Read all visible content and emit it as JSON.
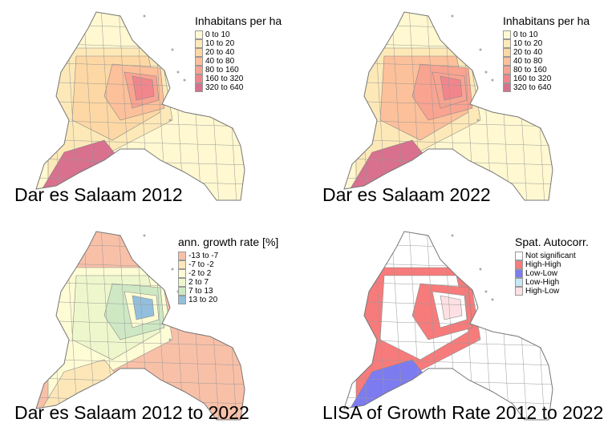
{
  "panels": [
    {
      "title": "Dar es Salaam 2012",
      "legend_title": "Inhabitans per ha",
      "legend": [
        {
          "label": "0 to 10",
          "color": "#fff8d0"
        },
        {
          "label": "10 to 20",
          "color": "#fde9b8"
        },
        {
          "label": "20 to 40",
          "color": "#fdd8a4"
        },
        {
          "label": "40 to 80",
          "color": "#fcc09a"
        },
        {
          "label": "80 to 160",
          "color": "#f9a391"
        },
        {
          "label": "160 to 320",
          "color": "#f0868c"
        },
        {
          "label": "320 to 640",
          "color": "#d8708e"
        }
      ],
      "fills": [
        1,
        2,
        3,
        4,
        5,
        6
      ]
    },
    {
      "title": "Dar es Salaam 2022",
      "legend_title": "Inhabitans per ha",
      "legend": [
        {
          "label": "0 to 10",
          "color": "#fff8d0"
        },
        {
          "label": "10 to 20",
          "color": "#fde9b8"
        },
        {
          "label": "20 to 40",
          "color": "#fdd8a4"
        },
        {
          "label": "40 to 80",
          "color": "#fcc09a"
        },
        {
          "label": "80 to 160",
          "color": "#f9a391"
        },
        {
          "label": "160 to 320",
          "color": "#f0868c"
        },
        {
          "label": "320 to 640",
          "color": "#d8708e"
        }
      ],
      "fills": [
        1,
        3,
        4,
        4,
        5,
        6
      ]
    },
    {
      "title": "Dar es Salaam 2012 to 2022",
      "legend_title": "ann. growth rate [%]",
      "legend": [
        {
          "label": "-13 to -7",
          "color": "#f9c0a8"
        },
        {
          "label": "-7 to -2",
          "color": "#fde7b8"
        },
        {
          "label": "-2 to 2",
          "color": "#fefcd4"
        },
        {
          "label": "2 to 7",
          "color": "#eef7cc"
        },
        {
          "label": "7 to 13",
          "color": "#cfe8c4"
        },
        {
          "label": "13 to 20",
          "color": "#93bfdc"
        }
      ],
      "fills": [
        2,
        3,
        4,
        2,
        5,
        1
      ]
    },
    {
      "title": "LISA of Growth Rate 2012 to 2022",
      "legend_title": "Spat. Autocorr.",
      "legend": [
        {
          "label": "Not significant",
          "color": "#ffffff"
        },
        {
          "label": "High-High",
          "color": "#f77b7b"
        },
        {
          "label": "Low-Low",
          "color": "#7d7bf0"
        },
        {
          "label": "Low-High",
          "color": "#c8e8f4"
        },
        {
          "label": "High-Low",
          "color": "#fde0e4"
        }
      ],
      "fills": [
        1,
        0,
        1,
        0,
        4,
        2
      ]
    }
  ]
}
